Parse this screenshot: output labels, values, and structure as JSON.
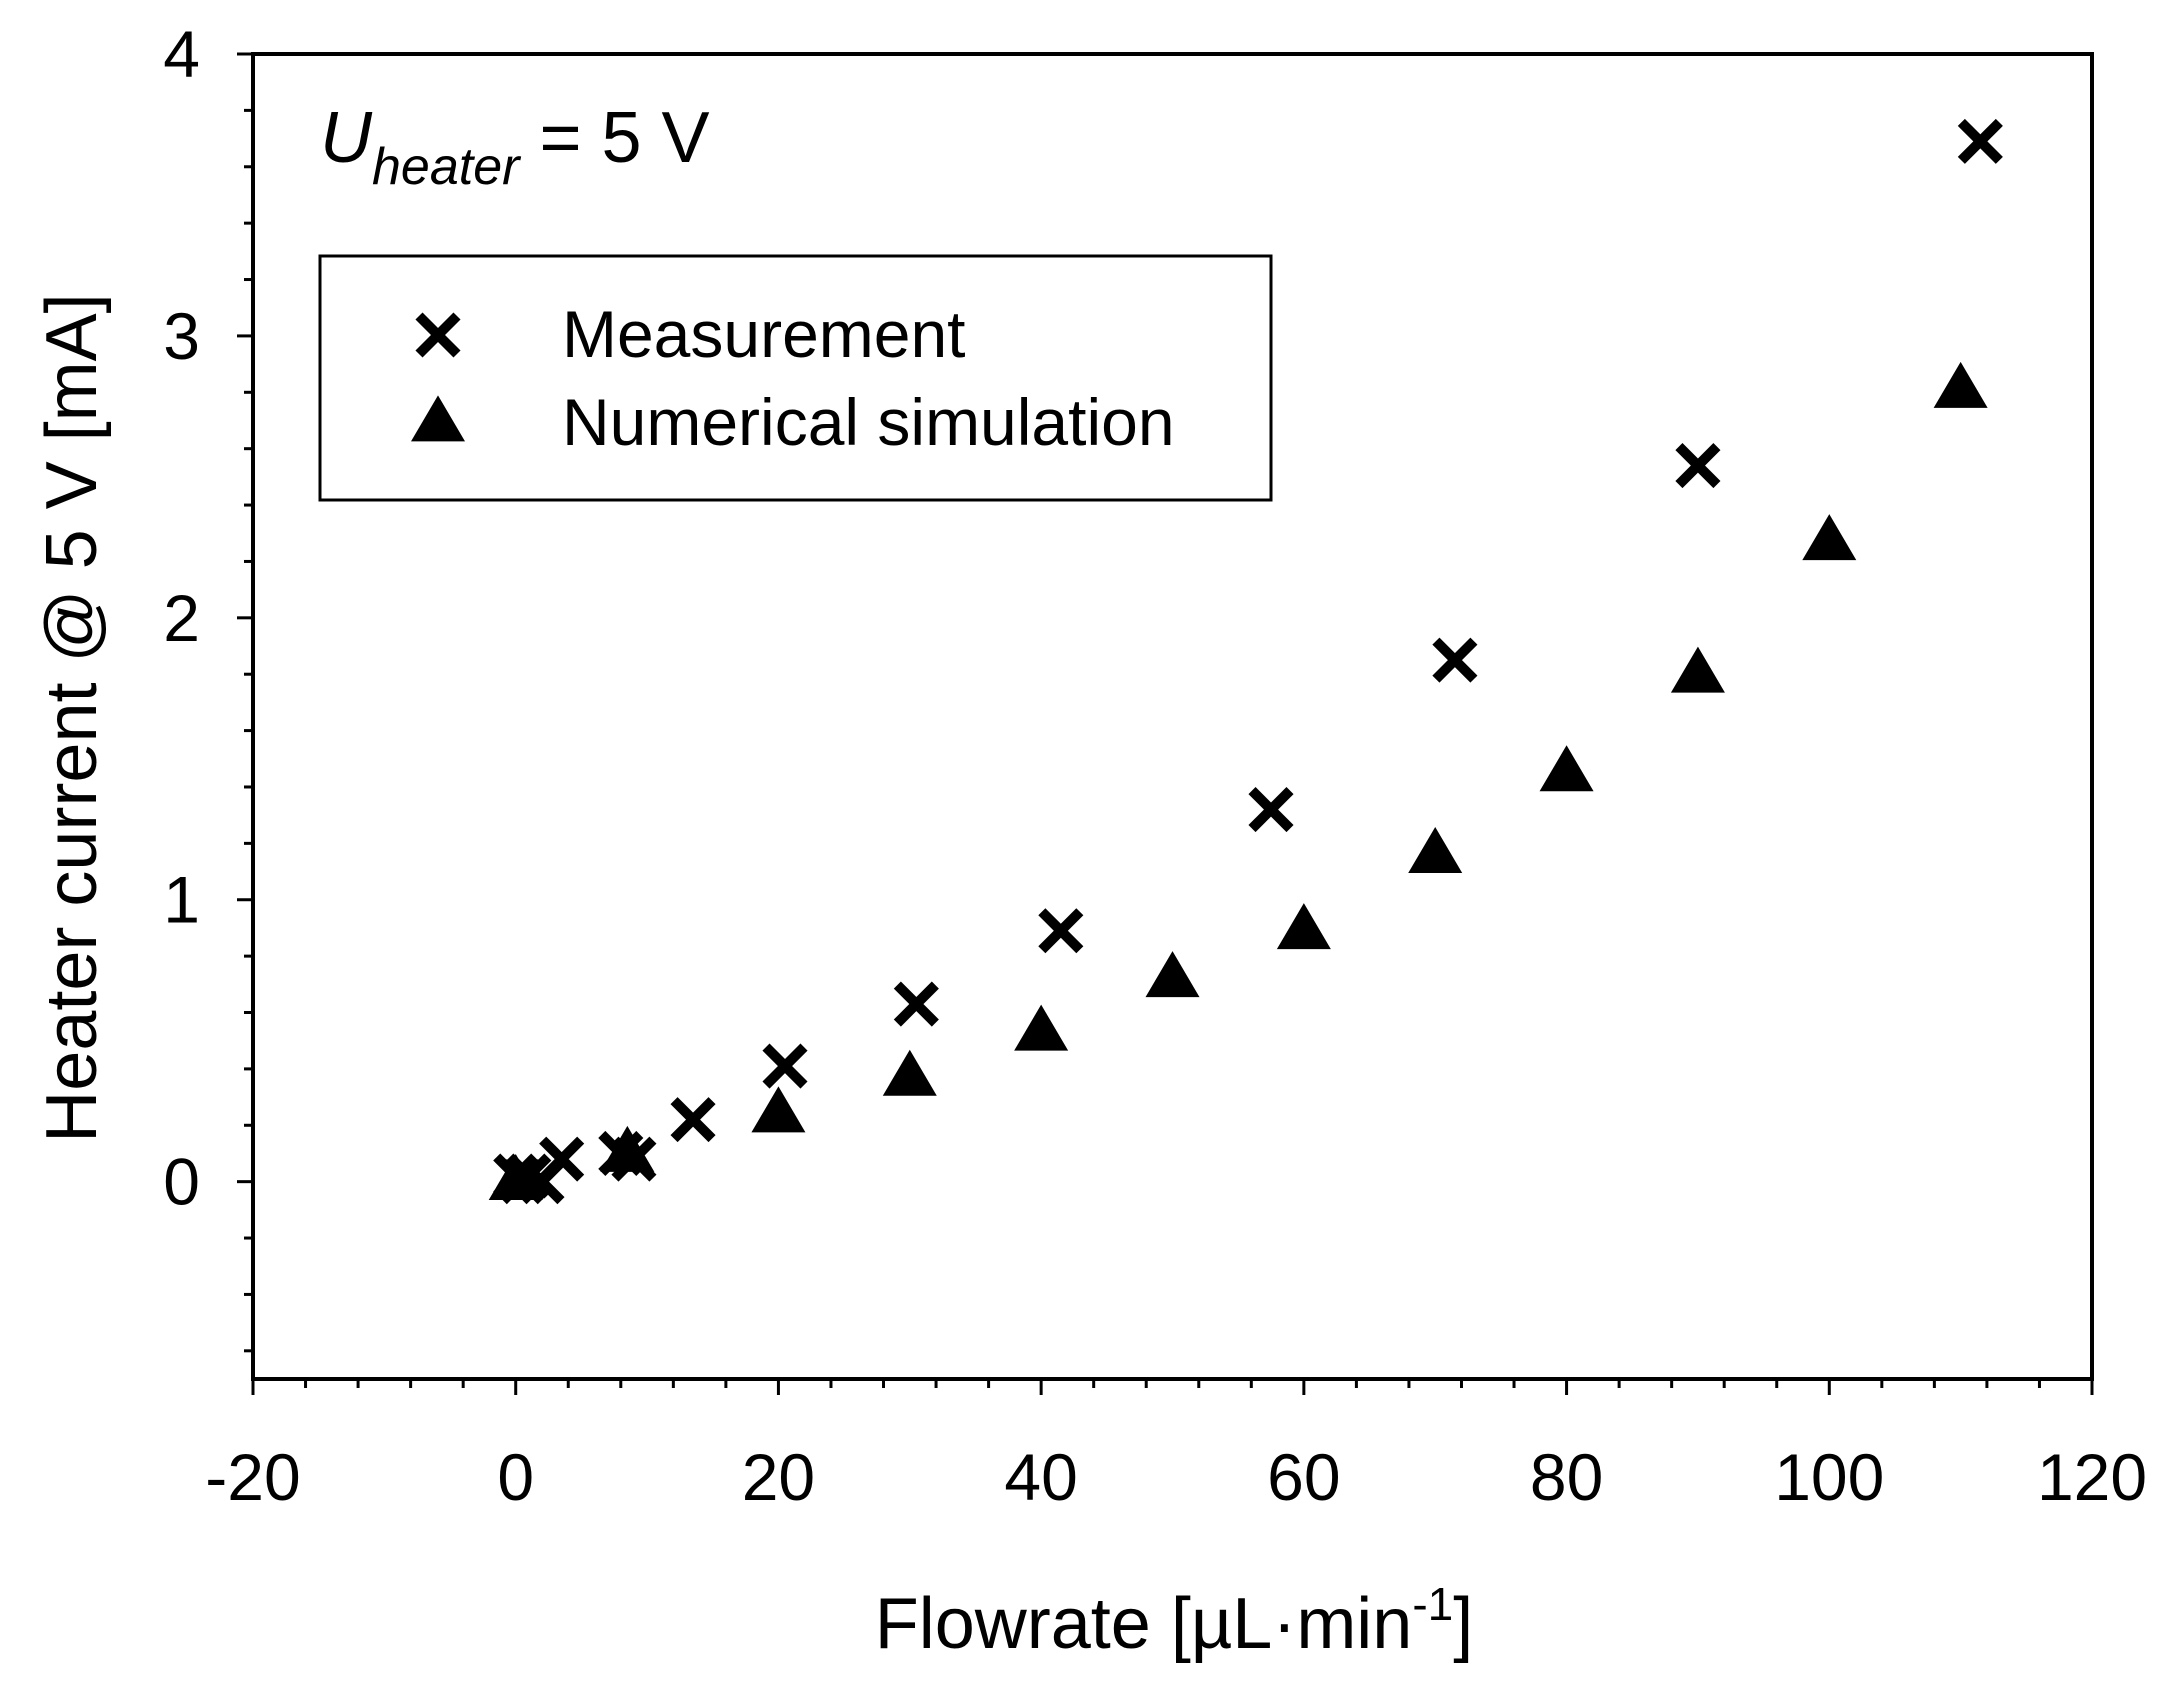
{
  "chart_data": {
    "type": "scatter",
    "xlabel": "Flowrate [µL·min",
    "xlabel_sup": "-1",
    "xlabel_close": "]",
    "ylabel": "Heater current @ 5 V [mA]",
    "xlim": [
      -20,
      120
    ],
    "ylim": [
      -0.7,
      4
    ],
    "x_ticks": [
      -20,
      0,
      20,
      40,
      60,
      80,
      100,
      120
    ],
    "x_tick_labels": [
      "-20",
      "0",
      "20",
      "40",
      "60",
      "80",
      "100",
      "120"
    ],
    "x_minor_step": 4,
    "y_ticks": [
      0,
      1,
      2,
      3,
      4
    ],
    "y_tick_labels": [
      "0",
      "1",
      "2",
      "3",
      "4"
    ],
    "y_minor_step": 0.2,
    "grid": false,
    "legend_position": "top-left",
    "annotation": {
      "variable": "U",
      "subscript": "heater",
      "rest": " = 5 V"
    },
    "series": [
      {
        "name": "Measurement",
        "marker": "cross",
        "points": [
          {
            "x": 0,
            "y": 0.02
          },
          {
            "x": 0.5,
            "y": 0.0
          },
          {
            "x": 1,
            "y": 0.02
          },
          {
            "x": 2,
            "y": 0.0
          },
          {
            "x": 3.5,
            "y": 0.08
          },
          {
            "x": 8,
            "y": 0.1
          },
          {
            "x": 9,
            "y": 0.08
          },
          {
            "x": 13.5,
            "y": 0.22
          },
          {
            "x": 20.5,
            "y": 0.41
          },
          {
            "x": 30.5,
            "y": 0.63
          },
          {
            "x": 41.5,
            "y": 0.89
          },
          {
            "x": 57.5,
            "y": 1.32
          },
          {
            "x": 71.5,
            "y": 1.85
          },
          {
            "x": 90,
            "y": 2.54
          },
          {
            "x": 111.5,
            "y": 3.69
          }
        ]
      },
      {
        "name": "Numerical simulation",
        "marker": "triangle",
        "points": [
          {
            "x": 0,
            "y": 0.0
          },
          {
            "x": 8.5,
            "y": 0.1
          },
          {
            "x": 20,
            "y": 0.24
          },
          {
            "x": 30,
            "y": 0.37
          },
          {
            "x": 40,
            "y": 0.53
          },
          {
            "x": 50,
            "y": 0.72
          },
          {
            "x": 60,
            "y": 0.89
          },
          {
            "x": 70,
            "y": 1.16
          },
          {
            "x": 80,
            "y": 1.45
          },
          {
            "x": 90,
            "y": 1.8
          },
          {
            "x": 100,
            "y": 2.27
          },
          {
            "x": 110,
            "y": 2.81
          }
        ]
      }
    ]
  },
  "colors": {
    "ink": "#000000",
    "background": "#ffffff"
  }
}
